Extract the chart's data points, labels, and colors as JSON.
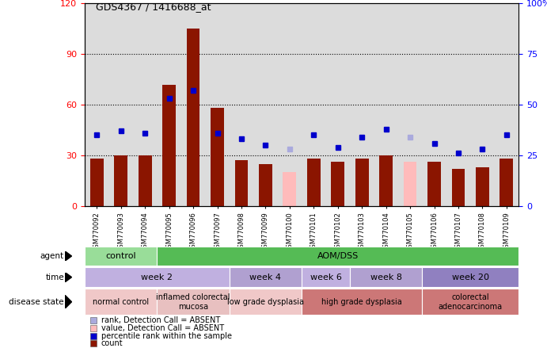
{
  "title": "GDS4367 / 1416688_at",
  "samples": [
    "GSM770092",
    "GSM770093",
    "GSM770094",
    "GSM770095",
    "GSM770096",
    "GSM770097",
    "GSM770098",
    "GSM770099",
    "GSM770100",
    "GSM770101",
    "GSM770102",
    "GSM770103",
    "GSM770104",
    "GSM770105",
    "GSM770106",
    "GSM770107",
    "GSM770108",
    "GSM770109"
  ],
  "count_values": [
    28,
    30,
    30,
    72,
    105,
    58,
    27,
    25,
    20,
    28,
    26,
    28,
    30,
    26,
    26,
    22,
    23,
    28
  ],
  "percentile_values": [
    35,
    37,
    36,
    53,
    57,
    36,
    33,
    30,
    28,
    35,
    29,
    34,
    38,
    34,
    31,
    26,
    28,
    35
  ],
  "absent_count": [
    false,
    false,
    false,
    false,
    false,
    false,
    false,
    false,
    true,
    false,
    false,
    false,
    false,
    true,
    false,
    false,
    false,
    false
  ],
  "absent_rank": [
    false,
    false,
    false,
    false,
    false,
    false,
    false,
    false,
    true,
    false,
    false,
    false,
    false,
    true,
    false,
    false,
    false,
    false
  ],
  "count_absent_values": [
    0,
    0,
    0,
    0,
    0,
    0,
    0,
    0,
    20,
    0,
    0,
    0,
    0,
    26,
    0,
    0,
    0,
    0
  ],
  "rank_absent_values": [
    0,
    0,
    0,
    0,
    0,
    0,
    0,
    0,
    28,
    0,
    0,
    0,
    0,
    34,
    0,
    0,
    0,
    0
  ],
  "ylim_left": [
    0,
    120
  ],
  "ylim_right": [
    0,
    100
  ],
  "yticks_left": [
    0,
    30,
    60,
    90,
    120
  ],
  "yticks_right": [
    0,
    25,
    50,
    75,
    100
  ],
  "ytick_labels_right": [
    "0",
    "25",
    "50",
    "75",
    "100%"
  ],
  "bar_color": "#8B1500",
  "bar_color_absent": "#FFBBBB",
  "rank_color": "#0000CC",
  "rank_color_absent": "#AAAADD",
  "bg_color": "#DCDCDC",
  "agent_rows": [
    {
      "label": "control",
      "start": 0,
      "end": 3,
      "color": "#99DD99"
    },
    {
      "label": "AOM/DSS",
      "start": 3,
      "end": 18,
      "color": "#55BB55"
    }
  ],
  "time_rows": [
    {
      "label": "week 2",
      "start": 0,
      "end": 6,
      "color": "#C0B0E0"
    },
    {
      "label": "week 4",
      "start": 6,
      "end": 9,
      "color": "#B0A0D0"
    },
    {
      "label": "week 6",
      "start": 9,
      "end": 11,
      "color": "#C0B0E0"
    },
    {
      "label": "week 8",
      "start": 11,
      "end": 14,
      "color": "#B0A0D0"
    },
    {
      "label": "week 20",
      "start": 14,
      "end": 18,
      "color": "#9080C0"
    }
  ],
  "disease_rows": [
    {
      "label": "normal control",
      "start": 0,
      "end": 3,
      "color": "#F0C8C8"
    },
    {
      "label": "inflamed colorectal\nmucosa",
      "start": 3,
      "end": 6,
      "color": "#E8C0C0"
    },
    {
      "label": "low grade dysplasia",
      "start": 6,
      "end": 9,
      "color": "#F0C8C8"
    },
    {
      "label": "high grade dysplasia",
      "start": 9,
      "end": 14,
      "color": "#CC7777"
    },
    {
      "label": "colorectal\nadenocarcinoma",
      "start": 14,
      "end": 18,
      "color": "#CC7777"
    }
  ],
  "legend_items": [
    {
      "label": "count",
      "color": "#8B1500"
    },
    {
      "label": "percentile rank within the sample",
      "color": "#0000CC"
    },
    {
      "label": "value, Detection Call = ABSENT",
      "color": "#FFBBBB"
    },
    {
      "label": "rank, Detection Call = ABSENT",
      "color": "#AAAADD"
    }
  ],
  "row_labels": [
    "agent",
    "time",
    "disease state"
  ]
}
